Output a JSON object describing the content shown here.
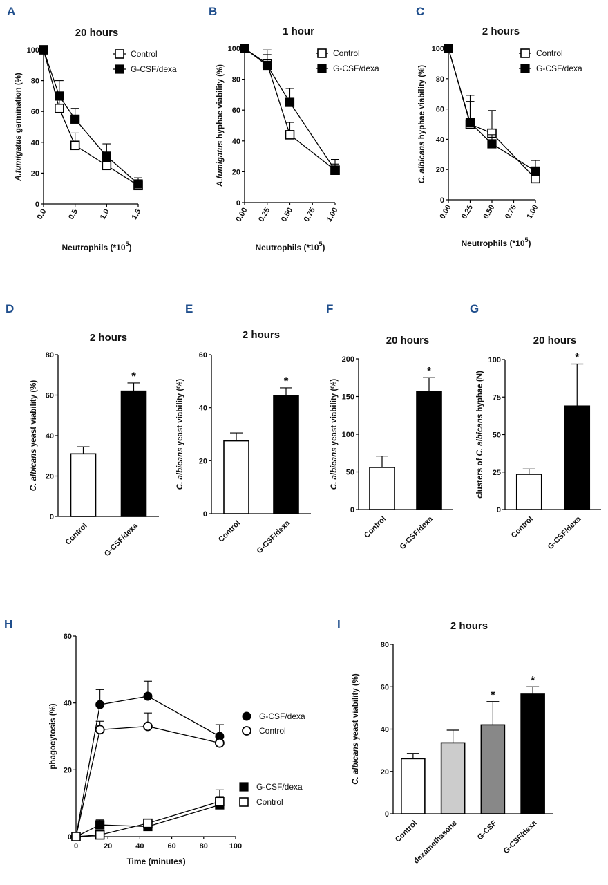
{
  "figure": {
    "panels": [
      "A",
      "B",
      "C",
      "D",
      "E",
      "F",
      "G",
      "H",
      "I"
    ]
  },
  "chart_data": [
    {
      "id": "A",
      "type": "line",
      "title": "20 hours",
      "ylabel_italic": "A.fumigatus",
      "ylabel_rest": " germination (%)",
      "xlabel": "Neutrophils (*10",
      "xlabel_sup": "5",
      "xlabel_end": ")",
      "ylim": [
        0,
        100
      ],
      "yticks": [
        "0",
        "20",
        "40",
        "60",
        "80",
        "100"
      ],
      "xlim": [
        0,
        1.5
      ],
      "xticks": [
        "0.0",
        "0.5",
        "1.0",
        "1.5"
      ],
      "xtick_values": [
        0,
        0.5,
        1.0,
        1.5
      ],
      "series": [
        {
          "name": "Control",
          "x": [
            0,
            0.25,
            0.5,
            1.0,
            1.5
          ],
          "y": [
            100,
            62,
            38,
            25,
            12
          ],
          "err": [
            0,
            8,
            8,
            3,
            3
          ]
        },
        {
          "name": "G-CSF/dexa",
          "x": [
            0,
            0.25,
            0.5,
            1.0,
            1.5
          ],
          "y": [
            100,
            70,
            55,
            31,
            13
          ],
          "err": [
            0,
            10,
            7,
            8,
            4
          ]
        }
      ]
    },
    {
      "id": "B",
      "type": "line",
      "title": "1 hour",
      "ylabel_italic": "A.fumigatus",
      "ylabel_rest": " hyphae viability (%)",
      "xlabel": "Neutrophils (*10",
      "xlabel_sup": "5",
      "xlabel_end": ")",
      "ylim": [
        0,
        100
      ],
      "yticks": [
        "0",
        "20",
        "40",
        "60",
        "80",
        "100"
      ],
      "xlim": [
        0,
        1.0
      ],
      "xticks": [
        "0.00",
        "0.25",
        "0.50",
        "0.75",
        "1.00"
      ],
      "xtick_values": [
        0,
        0.25,
        0.5,
        0.75,
        1.0
      ],
      "series": [
        {
          "name": "Control",
          "x": [
            0,
            0.25,
            0.5,
            1.0
          ],
          "y": [
            100,
            90,
            44,
            21
          ],
          "err": [
            0,
            9,
            8,
            4
          ]
        },
        {
          "name": "G-CSF/dexa",
          "x": [
            0,
            0.25,
            0.5,
            1.0
          ],
          "y": [
            100,
            89,
            65,
            21
          ],
          "err": [
            0,
            7,
            9,
            7
          ]
        }
      ]
    },
    {
      "id": "C",
      "type": "line",
      "title": "2 hours",
      "ylabel_italic": "C. albicans",
      "ylabel_rest": " hyphae viability (%)",
      "xlabel": "Neutrophils (*10",
      "xlabel_sup": "5",
      "xlabel_end": ")",
      "ylim": [
        0,
        100
      ],
      "yticks": [
        "0",
        "20",
        "40",
        "60",
        "80",
        "100"
      ],
      "xlim": [
        0,
        1.0
      ],
      "xticks": [
        "0.00",
        "0.25",
        "0.50",
        "0.75",
        "1.00"
      ],
      "xtick_values": [
        0,
        0.25,
        0.5,
        0.75,
        1.0
      ],
      "series": [
        {
          "name": "Control",
          "x": [
            0,
            0.25,
            0.5,
            1.0
          ],
          "y": [
            100,
            50,
            44,
            14
          ],
          "err": [
            0,
            15,
            15,
            6
          ]
        },
        {
          "name": "G-CSF/dexa",
          "x": [
            0,
            0.25,
            0.5,
            1.0
          ],
          "y": [
            100,
            51,
            37,
            19
          ],
          "err": [
            0,
            18,
            6,
            7
          ]
        }
      ]
    },
    {
      "id": "D",
      "type": "bar",
      "title": "2 hours",
      "ylabel_italic": "C. albicans",
      "ylabel_rest": " yeast viability  (%)",
      "ylim": [
        0,
        80
      ],
      "yticks": [
        "0",
        "20",
        "40",
        "60",
        "80"
      ],
      "categories": [
        "Control",
        "G-CSF/dexa"
      ],
      "values": [
        31,
        62
      ],
      "err": [
        3.5,
        4
      ],
      "fills": [
        "#ffffff",
        "#000000"
      ],
      "stars": [
        "",
        "*"
      ]
    },
    {
      "id": "E",
      "type": "bar",
      "title": "2 hours",
      "ylabel_italic": "C. albicans",
      "ylabel_rest": " yeast viability  (%)",
      "ylim": [
        0,
        60
      ],
      "yticks": [
        "0",
        "20",
        "40",
        "60"
      ],
      "categories": [
        "Control",
        "G-CSF/dexa"
      ],
      "values": [
        27.5,
        44.5
      ],
      "err": [
        3,
        3
      ],
      "fills": [
        "#ffffff",
        "#000000"
      ],
      "stars": [
        "",
        "*"
      ]
    },
    {
      "id": "F",
      "type": "bar",
      "title": "20 hours",
      "ylabel_italic": "C. albicans",
      "ylabel_rest": " yeast viability (%)",
      "ylim": [
        0,
        200
      ],
      "yticks": [
        "0",
        "50",
        "100",
        "150",
        "200"
      ],
      "categories": [
        "Control",
        "G-CSF/dexa"
      ],
      "values": [
        56,
        157
      ],
      "err": [
        15,
        18
      ],
      "fills": [
        "#ffffff",
        "#000000"
      ],
      "stars": [
        "",
        "*"
      ]
    },
    {
      "id": "G",
      "type": "bar",
      "title": "20 hours",
      "ylabel_prefix": "clusters of ",
      "ylabel_italic": "C. albicans",
      "ylabel_rest": " hyphae (N)",
      "ylim": [
        0,
        100
      ],
      "yticks": [
        "0",
        "25",
        "50",
        "75",
        "100"
      ],
      "categories": [
        "Control",
        "G-CSF/dexa"
      ],
      "values": [
        23.5,
        69
      ],
      "err": [
        3.5,
        28
      ],
      "fills": [
        "#ffffff",
        "#000000"
      ],
      "stars": [
        "",
        "*"
      ]
    },
    {
      "id": "H",
      "type": "line",
      "title": "",
      "ylabel_plain": "phagocytosis (%)",
      "xlabel": "Time (minutes)",
      "ylim": [
        0,
        60
      ],
      "yticks": [
        "0",
        "20",
        "40",
        "60"
      ],
      "xlim": [
        0,
        100
      ],
      "xticks": [
        "0",
        "20",
        "40",
        "60",
        "80",
        "100"
      ],
      "xtick_values": [
        0,
        20,
        40,
        60,
        80,
        100
      ],
      "series": [
        {
          "name": "G-CSF/dexa",
          "marker": "circle-filled",
          "x": [
            0,
            15,
            45,
            90
          ],
          "y": [
            0,
            39.5,
            42,
            30
          ],
          "err": [
            0,
            4.5,
            4.5,
            3.5
          ]
        },
        {
          "name": "Control",
          "marker": "circle-open",
          "x": [
            0,
            15,
            45,
            90
          ],
          "y": [
            0,
            32,
            33,
            28
          ],
          "err": [
            0,
            2.5,
            4,
            5.5
          ]
        },
        {
          "name": "G-CSF/dexa",
          "marker": "square-filled",
          "x": [
            0,
            15,
            45,
            90
          ],
          "y": [
            0,
            3.5,
            3,
            9.5
          ],
          "err": [
            0,
            1.5,
            1.5,
            2.5
          ]
        },
        {
          "name": "Control",
          "marker": "square-open",
          "x": [
            0,
            15,
            45,
            90
          ],
          "y": [
            0,
            0.5,
            4,
            10.5
          ],
          "err": [
            0,
            0,
            1,
            3.5
          ]
        }
      ]
    },
    {
      "id": "I",
      "type": "bar",
      "title": "2 hours",
      "ylabel_italic": "C. albicans",
      "ylabel_rest": " yeast viability (%)",
      "ylim": [
        0,
        80
      ],
      "yticks": [
        "0",
        "20",
        "40",
        "60",
        "80"
      ],
      "categories": [
        "Control",
        "dexamethasone",
        "G-CSF",
        "G-CSF/dexa"
      ],
      "values": [
        26,
        33.5,
        42,
        56.5
      ],
      "err": [
        2.5,
        6,
        11,
        3.5
      ],
      "fills": [
        "#ffffff",
        "#cccccc",
        "#888888",
        "#000000"
      ],
      "stars": [
        "",
        "",
        "*",
        "*"
      ]
    }
  ]
}
